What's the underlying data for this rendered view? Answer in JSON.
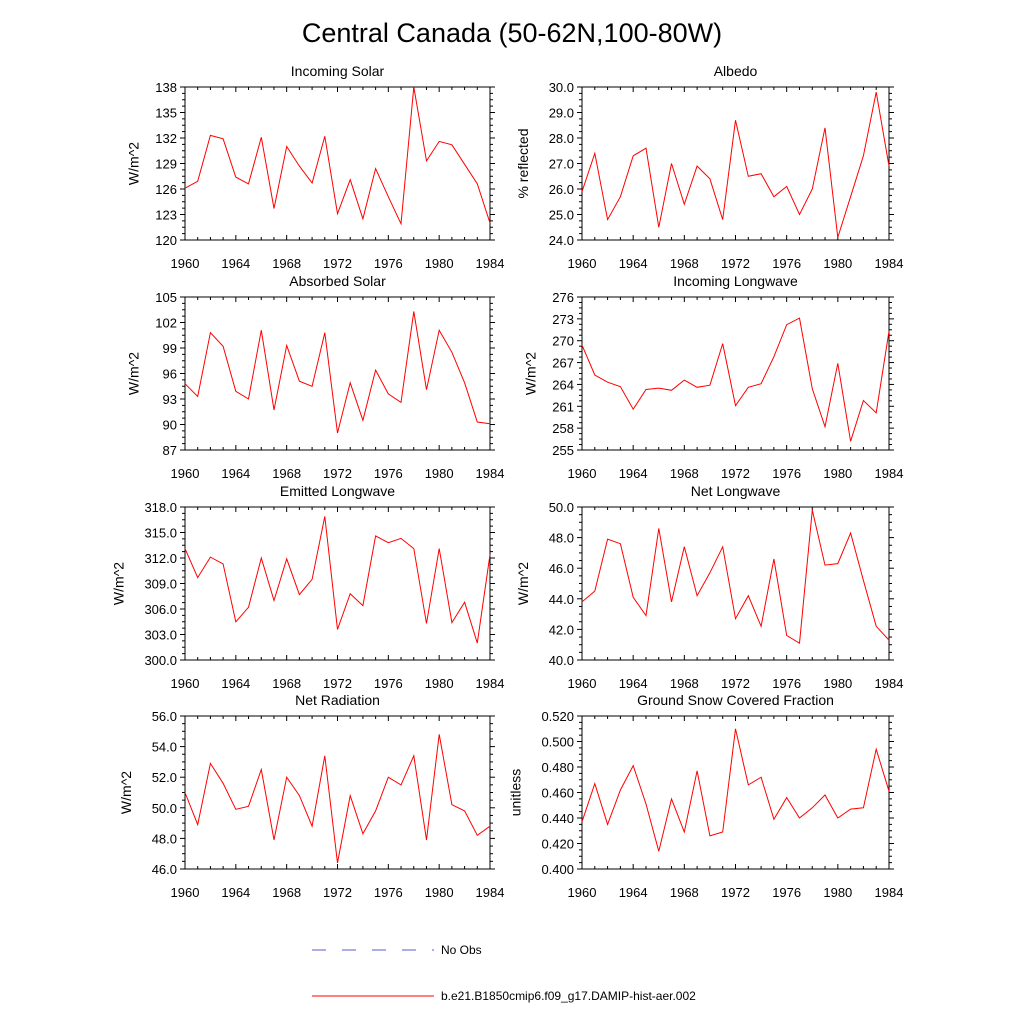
{
  "figure": {
    "title": "Central Canada (50-62N,100-80W)",
    "legend": [
      {
        "label": "No Obs",
        "color": "#5a5acc",
        "dash": "dashed"
      },
      {
        "label": "b.e21.B1850cmip6.f09_g17.DAMIP-hist-aer.002",
        "color": "#ff0000",
        "dash": "solid"
      }
    ],
    "line_color": "#ff0000"
  },
  "chart_data": [
    {
      "type": "line",
      "title": "Incoming Solar",
      "xlabel": "",
      "ylabel": "W/m^2",
      "xlim": [
        1960,
        1984
      ],
      "ylim": [
        120,
        138
      ],
      "xticks": [
        1960,
        1964,
        1968,
        1972,
        1976,
        1980,
        1984
      ],
      "yticks": [
        120,
        123,
        126,
        129,
        132,
        135,
        138
      ],
      "ydecimals": 0,
      "series": [
        {
          "x": [
            1960,
            1961,
            1962,
            1963,
            1964,
            1965,
            1966,
            1967,
            1968,
            1969,
            1970,
            1971,
            1972,
            1973,
            1974,
            1975,
            1976,
            1977,
            1978,
            1979,
            1980,
            1981,
            1982,
            1983,
            1984
          ],
          "values": [
            126.1,
            126.9,
            132.3,
            131.9,
            127.4,
            126.6,
            132.1,
            123.7,
            131.0,
            128.7,
            126.7,
            132.2,
            123.1,
            127.1,
            122.5,
            128.4,
            125.1,
            121.9,
            138.0,
            129.3,
            131.6,
            131.2,
            128.9,
            126.6,
            122.0
          ]
        }
      ]
    },
    {
      "type": "line",
      "title": "Albedo",
      "xlabel": "",
      "ylabel": "% reflected",
      "xlim": [
        1960,
        1984
      ],
      "ylim": [
        24.0,
        30.0
      ],
      "xticks": [
        1960,
        1964,
        1968,
        1972,
        1976,
        1980,
        1984
      ],
      "yticks": [
        24.0,
        25.0,
        26.0,
        27.0,
        28.0,
        29.0,
        30.0
      ],
      "ydecimals": 1,
      "series": [
        {
          "x": [
            1960,
            1961,
            1962,
            1963,
            1964,
            1965,
            1966,
            1967,
            1968,
            1969,
            1970,
            1971,
            1972,
            1973,
            1974,
            1975,
            1976,
            1977,
            1978,
            1979,
            1980,
            1981,
            1982,
            1983,
            1984
          ],
          "values": [
            25.9,
            27.4,
            24.8,
            25.7,
            27.3,
            27.6,
            24.5,
            27.0,
            25.4,
            26.9,
            26.4,
            24.8,
            28.7,
            26.5,
            26.6,
            25.7,
            26.1,
            25.0,
            26.0,
            28.4,
            24.1,
            25.7,
            27.3,
            29.8,
            26.9
          ]
        }
      ]
    },
    {
      "type": "line",
      "title": "Absorbed Solar",
      "xlabel": "",
      "ylabel": "W/m^2",
      "xlim": [
        1960,
        1984
      ],
      "ylim": [
        87,
        105
      ],
      "xticks": [
        1960,
        1964,
        1968,
        1972,
        1976,
        1980,
        1984
      ],
      "yticks": [
        87,
        90,
        93,
        96,
        99,
        102,
        105
      ],
      "ydecimals": 0,
      "series": [
        {
          "x": [
            1960,
            1961,
            1962,
            1963,
            1964,
            1965,
            1966,
            1967,
            1968,
            1969,
            1970,
            1971,
            1972,
            1973,
            1974,
            1975,
            1976,
            1977,
            1978,
            1979,
            1980,
            1981,
            1982,
            1983,
            1984
          ],
          "values": [
            94.8,
            93.3,
            100.8,
            99.2,
            93.9,
            93.0,
            101.1,
            91.7,
            99.3,
            95.1,
            94.5,
            100.8,
            89.0,
            94.9,
            90.5,
            96.4,
            93.6,
            92.6,
            103.3,
            94.1,
            101.1,
            98.5,
            94.9,
            90.3,
            90.1
          ]
        }
      ]
    },
    {
      "type": "line",
      "title": "Incoming Longwave",
      "xlabel": "",
      "ylabel": "W/m^2",
      "xlim": [
        1960,
        1984
      ],
      "ylim": [
        255,
        276
      ],
      "xticks": [
        1960,
        1964,
        1968,
        1972,
        1976,
        1980,
        1984
      ],
      "yticks": [
        255,
        258,
        261,
        264,
        267,
        270,
        273,
        276
      ],
      "ydecimals": 0,
      "series": [
        {
          "x": [
            1960,
            1961,
            1962,
            1963,
            1964,
            1965,
            1966,
            1967,
            1968,
            1969,
            1970,
            1971,
            1972,
            1973,
            1974,
            1975,
            1976,
            1977,
            1978,
            1979,
            1980,
            1981,
            1982,
            1983,
            1984
          ],
          "values": [
            269.4,
            265.3,
            264.3,
            263.7,
            260.6,
            263.3,
            263.5,
            263.2,
            264.6,
            263.6,
            263.9,
            269.6,
            261.1,
            263.6,
            264.1,
            267.8,
            272.2,
            273.1,
            263.4,
            258.2,
            266.9,
            256.2,
            261.8,
            260.1,
            271.3
          ]
        }
      ]
    },
    {
      "type": "line",
      "title": "Emitted Longwave",
      "xlabel": "",
      "ylabel": "W/m^2",
      "xlim": [
        1960,
        1984
      ],
      "ylim": [
        300.0,
        318.0
      ],
      "xticks": [
        1960,
        1964,
        1968,
        1972,
        1976,
        1980,
        1984
      ],
      "yticks": [
        300.0,
        303.0,
        306.0,
        309.0,
        312.0,
        315.0,
        318.0
      ],
      "ydecimals": 1,
      "series": [
        {
          "x": [
            1960,
            1961,
            1962,
            1963,
            1964,
            1965,
            1966,
            1967,
            1968,
            1969,
            1970,
            1971,
            1972,
            1973,
            1974,
            1975,
            1976,
            1977,
            1978,
            1979,
            1980,
            1981,
            1982,
            1983,
            1984
          ],
          "values": [
            313.1,
            309.7,
            312.1,
            311.3,
            304.5,
            306.2,
            312.0,
            307.0,
            311.9,
            307.7,
            309.5,
            316.9,
            303.6,
            307.8,
            306.4,
            314.6,
            313.8,
            314.3,
            313.1,
            304.3,
            313.1,
            304.4,
            306.8,
            302.0,
            312.4
          ]
        }
      ]
    },
    {
      "type": "line",
      "title": "Net Longwave",
      "xlabel": "",
      "ylabel": "W/m^2",
      "xlim": [
        1960,
        1984
      ],
      "ylim": [
        40.0,
        50.0
      ],
      "xticks": [
        1960,
        1964,
        1968,
        1972,
        1976,
        1980,
        1984
      ],
      "yticks": [
        40.0,
        42.0,
        44.0,
        46.0,
        48.0,
        50.0
      ],
      "ydecimals": 1,
      "series": [
        {
          "x": [
            1960,
            1961,
            1962,
            1963,
            1964,
            1965,
            1966,
            1967,
            1968,
            1969,
            1970,
            1971,
            1972,
            1973,
            1974,
            1975,
            1976,
            1977,
            1978,
            1979,
            1980,
            1981,
            1982,
            1983,
            1984
          ],
          "values": [
            43.8,
            44.5,
            47.9,
            47.6,
            44.1,
            42.9,
            48.6,
            43.8,
            47.4,
            44.2,
            45.7,
            47.4,
            42.7,
            44.2,
            42.2,
            46.6,
            41.6,
            41.1,
            49.8,
            46.2,
            46.3,
            48.3,
            45.2,
            42.2,
            41.3
          ]
        }
      ]
    },
    {
      "type": "line",
      "title": "Net Radiation",
      "xlabel": "",
      "ylabel": "W/m^2",
      "xlim": [
        1960,
        1984
      ],
      "ylim": [
        46.0,
        56.0
      ],
      "xticks": [
        1960,
        1964,
        1968,
        1972,
        1976,
        1980,
        1984
      ],
      "yticks": [
        46.0,
        48.0,
        50.0,
        52.0,
        54.0,
        56.0
      ],
      "ydecimals": 1,
      "series": [
        {
          "x": [
            1960,
            1961,
            1962,
            1963,
            1964,
            1965,
            1966,
            1967,
            1968,
            1969,
            1970,
            1971,
            1972,
            1973,
            1974,
            1975,
            1976,
            1977,
            1978,
            1979,
            1980,
            1981,
            1982,
            1983,
            1984
          ],
          "values": [
            51.0,
            48.9,
            52.9,
            51.6,
            49.9,
            50.1,
            52.5,
            47.9,
            52.0,
            50.8,
            48.8,
            53.4,
            46.4,
            50.8,
            48.3,
            49.8,
            52.0,
            51.5,
            53.4,
            47.9,
            54.8,
            50.2,
            49.8,
            48.2,
            48.8
          ]
        }
      ]
    },
    {
      "type": "line",
      "title": "Ground Snow Covered Fraction",
      "xlabel": "",
      "ylabel": "unitless",
      "xlim": [
        1960,
        1984
      ],
      "ylim": [
        0.4,
        0.52
      ],
      "xticks": [
        1960,
        1964,
        1968,
        1972,
        1976,
        1980,
        1984
      ],
      "yticks": [
        0.4,
        0.42,
        0.44,
        0.46,
        0.48,
        0.5,
        0.52
      ],
      "ydecimals": 3,
      "series": [
        {
          "x": [
            1960,
            1961,
            1962,
            1963,
            1964,
            1965,
            1966,
            1967,
            1968,
            1969,
            1970,
            1971,
            1972,
            1973,
            1974,
            1975,
            1976,
            1977,
            1978,
            1979,
            1980,
            1981,
            1982,
            1983,
            1984
          ],
          "values": [
            0.437,
            0.467,
            0.435,
            0.462,
            0.481,
            0.451,
            0.414,
            0.455,
            0.429,
            0.477,
            0.426,
            0.429,
            0.51,
            0.466,
            0.472,
            0.439,
            0.456,
            0.44,
            0.448,
            0.458,
            0.44,
            0.447,
            0.448,
            0.494,
            0.461
          ]
        }
      ]
    }
  ]
}
